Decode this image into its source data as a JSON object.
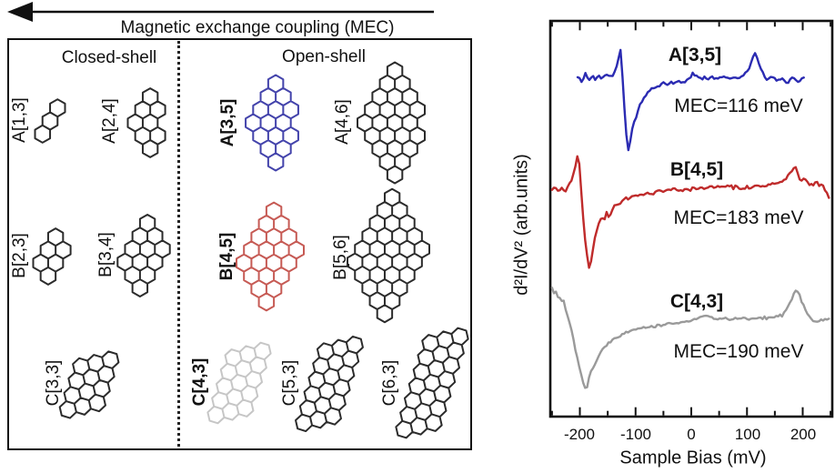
{
  "figure": {
    "mec_arrow_label": "Magnetic exchange coupling (MEC)"
  },
  "panel": {
    "closed_shell_header": "Closed-shell",
    "open_shell_header": "Open-shell",
    "molecule_outline_color": "#2b2b2b",
    "highlight_colors": {
      "A35": "#4343ab",
      "B45": "#c65a54",
      "C43": "#c6c6c6"
    },
    "molecules": [
      {
        "label": "A[1,3]",
        "family": "A",
        "cols": 1,
        "rows": 3,
        "shell": "closed",
        "color": "#2b2b2b",
        "highlight": false
      },
      {
        "label": "A[2,4]",
        "family": "A",
        "cols": 2,
        "rows": 4,
        "shell": "closed",
        "color": "#2b2b2b",
        "highlight": false
      },
      {
        "label": "A[3,5]",
        "family": "A",
        "cols": 3,
        "rows": 5,
        "shell": "open",
        "color": "#4343ab",
        "highlight": true
      },
      {
        "label": "A[4,6]",
        "family": "A",
        "cols": 4,
        "rows": 6,
        "shell": "open",
        "color": "#2b2b2b",
        "highlight": false
      },
      {
        "label": "B[2,3]",
        "family": "B",
        "cols": 2,
        "rows": 3,
        "shell": "closed",
        "color": "#2b2b2b",
        "highlight": false
      },
      {
        "label": "B[3,4]",
        "family": "B",
        "cols": 3,
        "rows": 4,
        "shell": "closed",
        "color": "#2b2b2b",
        "highlight": false
      },
      {
        "label": "B[4,5]",
        "family": "B",
        "cols": 4,
        "rows": 5,
        "shell": "open",
        "color": "#c65a54",
        "highlight": true
      },
      {
        "label": "B[5,6]",
        "family": "B",
        "cols": 5,
        "rows": 6,
        "shell": "open",
        "color": "#2b2b2b",
        "highlight": false
      },
      {
        "label": "C[3,3]",
        "family": "C",
        "cols": 3,
        "rows": 3,
        "shell": "closed",
        "color": "#2b2b2b",
        "highlight": false
      },
      {
        "label": "C[4,3]",
        "family": "C",
        "cols": 3,
        "rows": 4,
        "shell": "open",
        "color": "#c6c6c6",
        "highlight": true
      },
      {
        "label": "C[5,3]",
        "family": "C",
        "cols": 3,
        "rows": 5,
        "shell": "open",
        "color": "#2b2b2b",
        "highlight": false
      },
      {
        "label": "C[6,3]",
        "family": "C",
        "cols": 3,
        "rows": 6,
        "shell": "open",
        "color": "#2b2b2b",
        "highlight": false
      }
    ]
  },
  "chart_data": {
    "type": "line",
    "title": "",
    "xlabel": "Sample Bias (mV)",
    "ylabel": "d²I/dV² (arb.units)",
    "xlim": [
      -253,
      253
    ],
    "xticks_major": [
      -200,
      -100,
      0,
      100,
      200
    ],
    "xtick_labels": [
      "-200",
      "-100",
      "0",
      "100",
      "200"
    ],
    "xticks_minor_step": 50,
    "grid": false,
    "legend_position": "inline-annotations",
    "series": [
      {
        "name": "A[3,5]",
        "mec_label": "MEC=116 meV",
        "mec_meV": 116,
        "color": "#2b2bb2",
        "offset": 371,
        "noise": 2.4,
        "points": [
          [
            -204,
            2
          ],
          [
            -196,
            -3
          ],
          [
            -190,
            6
          ],
          [
            -184,
            -2
          ],
          [
            -178,
            4
          ],
          [
            -172,
            0
          ],
          [
            -166,
            5
          ],
          [
            -160,
            1
          ],
          [
            -154,
            6
          ],
          [
            -148,
            3
          ],
          [
            -142,
            5
          ],
          [
            -136,
            9
          ],
          [
            -131,
            22
          ],
          [
            -128,
            37
          ],
          [
            -125,
            18
          ],
          [
            -122,
            -12
          ],
          [
            -118,
            -50
          ],
          [
            -114,
            -78
          ],
          [
            -112,
            -80
          ],
          [
            -109,
            -66
          ],
          [
            -105,
            -52
          ],
          [
            -100,
            -42
          ],
          [
            -95,
            -33
          ],
          [
            -90,
            -26
          ],
          [
            -84,
            -20
          ],
          [
            -78,
            -15
          ],
          [
            -71,
            -11
          ],
          [
            -64,
            -9
          ],
          [
            -56,
            -7
          ],
          [
            -48,
            -5
          ],
          [
            -40,
            -5
          ],
          [
            -32,
            -4
          ],
          [
            -24,
            -3
          ],
          [
            -16,
            -3
          ],
          [
            -8,
            -2
          ],
          [
            -2,
            2
          ],
          [
            3,
            7
          ],
          [
            8,
            3
          ],
          [
            16,
            1
          ],
          [
            24,
            2
          ],
          [
            32,
            1
          ],
          [
            40,
            2
          ],
          [
            48,
            1
          ],
          [
            56,
            3
          ],
          [
            64,
            1
          ],
          [
            72,
            2
          ],
          [
            80,
            2
          ],
          [
            88,
            3
          ],
          [
            96,
            5
          ],
          [
            103,
            10
          ],
          [
            109,
            20
          ],
          [
            114,
            30
          ],
          [
            119,
            22
          ],
          [
            125,
            10
          ],
          [
            131,
            3
          ],
          [
            138,
            0
          ],
          [
            146,
            1
          ],
          [
            154,
            -2
          ],
          [
            162,
            0
          ],
          [
            170,
            -3
          ],
          [
            178,
            -1
          ],
          [
            186,
            1
          ],
          [
            194,
            -2
          ],
          [
            200,
            1
          ],
          [
            203,
            0
          ]
        ]
      },
      {
        "name": "B[4,5]",
        "mec_label": "MEC=183 meV",
        "mec_meV": 183,
        "color": "#bf2b2b",
        "offset": 251,
        "noise": 2.3,
        "points": [
          [
            -250,
            -3
          ],
          [
            -244,
            2
          ],
          [
            -238,
            -4
          ],
          [
            -232,
            1
          ],
          [
            -226,
            -2
          ],
          [
            -220,
            3
          ],
          [
            -214,
            10
          ],
          [
            -209,
            22
          ],
          [
            -205,
            33
          ],
          [
            -202,
            35
          ],
          [
            -199,
            12
          ],
          [
            -196,
            -18
          ],
          [
            -192,
            -48
          ],
          [
            -188,
            -70
          ],
          [
            -184,
            -86
          ],
          [
            -182,
            -88
          ],
          [
            -179,
            -78
          ],
          [
            -175,
            -62
          ],
          [
            -171,
            -50
          ],
          [
            -167,
            -40
          ],
          [
            -162,
            -32
          ],
          [
            -157,
            -36
          ],
          [
            -152,
            -27
          ],
          [
            -147,
            -31
          ],
          [
            -142,
            -23
          ],
          [
            -136,
            -17
          ],
          [
            -130,
            -19
          ],
          [
            -124,
            -13
          ],
          [
            -118,
            -10
          ],
          [
            -112,
            -12
          ],
          [
            -106,
            -8
          ],
          [
            -99,
            -9
          ],
          [
            -92,
            -6
          ],
          [
            -85,
            -8
          ],
          [
            -78,
            -5
          ],
          [
            -70,
            -6
          ],
          [
            -62,
            -3
          ],
          [
            -54,
            -4
          ],
          [
            -46,
            -2
          ],
          [
            -38,
            -3
          ],
          [
            -30,
            -2
          ],
          [
            -22,
            -3
          ],
          [
            -14,
            -1
          ],
          [
            -6,
            -2
          ],
          [
            2,
            0
          ],
          [
            10,
            -1
          ],
          [
            18,
            1
          ],
          [
            26,
            -1
          ],
          [
            34,
            2
          ],
          [
            42,
            0
          ],
          [
            50,
            2
          ],
          [
            58,
            1
          ],
          [
            66,
            3
          ],
          [
            74,
            1
          ],
          [
            82,
            2
          ],
          [
            90,
            0
          ],
          [
            98,
            2
          ],
          [
            106,
            1
          ],
          [
            114,
            3
          ],
          [
            122,
            2
          ],
          [
            130,
            3
          ],
          [
            138,
            4
          ],
          [
            146,
            6
          ],
          [
            154,
            5
          ],
          [
            162,
            7
          ],
          [
            170,
            10
          ],
          [
            177,
            15
          ],
          [
            183,
            21
          ],
          [
            188,
            22
          ],
          [
            193,
            11
          ],
          [
            198,
            7
          ],
          [
            203,
            13
          ],
          [
            208,
            9
          ],
          [
            213,
            3
          ],
          [
            218,
            5
          ],
          [
            224,
            7
          ],
          [
            230,
            2
          ],
          [
            236,
            4
          ],
          [
            241,
            -3
          ],
          [
            246,
            -9
          ],
          [
            250,
            -11
          ]
        ]
      },
      {
        "name": "C[4,3]",
        "mec_label": "MEC=190 meV",
        "mec_meV": 190,
        "color": "#9a9a9a",
        "offset": 106,
        "noise": 2.0,
        "points": [
          [
            -250,
            37
          ],
          [
            -247,
            29
          ],
          [
            -244,
            34
          ],
          [
            -241,
            25
          ],
          [
            -238,
            29
          ],
          [
            -234,
            20
          ],
          [
            -230,
            23
          ],
          [
            -226,
            12
          ],
          [
            -222,
            4
          ],
          [
            -218,
            -4
          ],
          [
            -213,
            -16
          ],
          [
            -208,
            -32
          ],
          [
            -203,
            -47
          ],
          [
            -198,
            -60
          ],
          [
            -193,
            -71
          ],
          [
            -189,
            -76
          ],
          [
            -185,
            -68
          ],
          [
            -181,
            -58
          ],
          [
            -176,
            -51
          ],
          [
            -171,
            -45
          ],
          [
            -166,
            -39
          ],
          [
            -160,
            -34
          ],
          [
            -154,
            -29
          ],
          [
            -148,
            -26
          ],
          [
            -141,
            -22
          ],
          [
            -134,
            -19
          ],
          [
            -127,
            -17
          ],
          [
            -120,
            -15
          ],
          [
            -112,
            -13
          ],
          [
            -104,
            -11
          ],
          [
            -96,
            -10
          ],
          [
            -88,
            -9
          ],
          [
            -80,
            -8
          ],
          [
            -71,
            -7
          ],
          [
            -62,
            -6
          ],
          [
            -53,
            -5
          ],
          [
            -44,
            -4
          ],
          [
            -35,
            -4
          ],
          [
            -26,
            -3
          ],
          [
            -17,
            -2
          ],
          [
            -8,
            -1
          ],
          [
            0,
            0
          ],
          [
            8,
            1
          ],
          [
            16,
            3
          ],
          [
            24,
            5
          ],
          [
            30,
            6
          ],
          [
            37,
            3
          ],
          [
            45,
            2
          ],
          [
            53,
            1
          ],
          [
            61,
            2
          ],
          [
            69,
            1
          ],
          [
            77,
            2
          ],
          [
            85,
            1
          ],
          [
            93,
            2
          ],
          [
            101,
            1
          ],
          [
            109,
            2
          ],
          [
            117,
            2
          ],
          [
            125,
            3
          ],
          [
            133,
            2
          ],
          [
            141,
            3
          ],
          [
            149,
            3
          ],
          [
            156,
            4
          ],
          [
            163,
            6
          ],
          [
            170,
            11
          ],
          [
            176,
            18
          ],
          [
            182,
            26
          ],
          [
            187,
            32
          ],
          [
            192,
            30
          ],
          [
            197,
            23
          ],
          [
            202,
            15
          ],
          [
            207,
            8
          ],
          [
            212,
            4
          ],
          [
            217,
            1
          ],
          [
            222,
            -1
          ],
          [
            227,
            -2
          ],
          [
            232,
            0
          ],
          [
            237,
            -1
          ],
          [
            242,
            1
          ],
          [
            246,
            2
          ],
          [
            250,
            4
          ]
        ]
      }
    ]
  }
}
